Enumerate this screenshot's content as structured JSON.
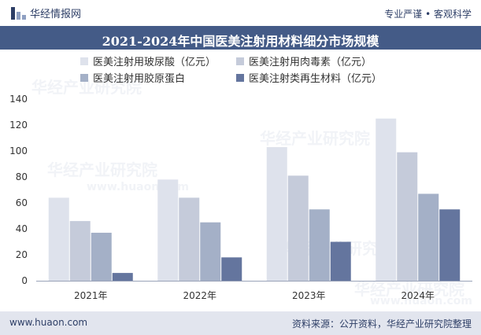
{
  "header": {
    "brand": "华经情报网",
    "slogan": "专业严谨 • 客观科学"
  },
  "chart_data": {
    "type": "bar",
    "title": "2021-2024年中国医美注射用材料细分市场规模",
    "categories": [
      "2021年",
      "2022年",
      "2023年",
      "2024年"
    ],
    "series": [
      {
        "name": "医美注射用玻尿酸（亿元）",
        "color": "#dee2ec",
        "values": [
          64,
          78,
          103,
          125
        ]
      },
      {
        "name": "医美注射用肉毒素（亿元）",
        "color": "#c5cbda",
        "values": [
          46,
          64,
          81,
          99
        ]
      },
      {
        "name": "医美注射用胶原蛋白",
        "color": "#a4b0c7",
        "values": [
          37,
          45,
          55,
          67
        ]
      },
      {
        "name": "医美注射类再生材料（亿元）",
        "color": "#64759e",
        "values": [
          6,
          18,
          30,
          55
        ]
      }
    ],
    "ylim": [
      0,
      140
    ],
    "yticks": [
      0,
      20,
      40,
      60,
      80,
      100,
      120,
      140
    ],
    "xlabel": "",
    "ylabel": "",
    "legend": "top-left"
  },
  "footer": {
    "website": "www.huaon.com",
    "source": "资料来源：公开资料，华经产业研究院整理"
  },
  "watermarks": [
    "华经产业研究院",
    "www.huaon.com"
  ]
}
